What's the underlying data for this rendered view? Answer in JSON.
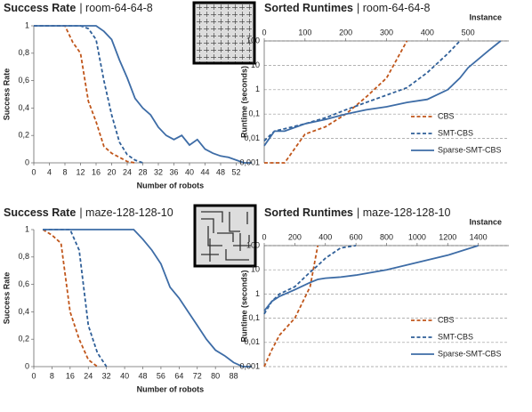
{
  "chart_data": [
    {
      "type": "line",
      "title": "Success Rate",
      "subtitle": "| room-64-64-8",
      "ylabel": "Success Rate",
      "xlabel": "Number of robots",
      "x": [
        0,
        2,
        4,
        6,
        8,
        10,
        12,
        14,
        16,
        18,
        20,
        22,
        24,
        26,
        28,
        30,
        32,
        34,
        36,
        38,
        40,
        42,
        44,
        46,
        48,
        50,
        52,
        54,
        56
      ],
      "xlim": [
        0,
        56
      ],
      "xticks": [
        0,
        4,
        8,
        12,
        16,
        20,
        24,
        28,
        32,
        36,
        40,
        44,
        48,
        52
      ],
      "ylim": [
        0,
        1
      ],
      "yticks": [
        0,
        {
          "value": 0.2,
          "label": "0,2"
        },
        {
          "value": 0.4,
          "label": "0,4"
        },
        {
          "value": 0.6,
          "label": "0,6"
        },
        {
          "value": 0.8,
          "label": "0,8"
        },
        1
      ],
      "grid": false,
      "series": [
        {
          "color": "#c0561b",
          "dashed": true,
          "values": [
            1,
            1,
            1,
            1,
            1,
            0.88,
            0.8,
            0.45,
            0.3,
            0.12,
            0.07,
            0.04,
            0.01,
            0,
            null,
            null,
            null,
            null,
            null,
            null,
            null,
            null,
            null,
            null,
            null,
            null,
            null,
            null,
            null
          ]
        },
        {
          "color": "#2f5f98",
          "dashed": true,
          "values": [
            1,
            1,
            1,
            1,
            1,
            1,
            1,
            0.98,
            0.9,
            0.6,
            0.35,
            0.15,
            0.06,
            0.02,
            0,
            null,
            null,
            null,
            null,
            null,
            null,
            null,
            null,
            null,
            null,
            null,
            null,
            null,
            null
          ]
        },
        {
          "color": "#3d6ca6",
          "dashed": false,
          "values": [
            1,
            1,
            1,
            1,
            1,
            1,
            1,
            1,
            1,
            0.96,
            0.9,
            0.75,
            0.62,
            0.47,
            0.4,
            0.35,
            0.26,
            0.2,
            0.17,
            0.2,
            0.13,
            0.17,
            0.1,
            0.07,
            0.05,
            0.04,
            0.02,
            0,
            0
          ]
        }
      ]
    },
    {
      "type": "line",
      "title": "Sorted Runtimes",
      "subtitle": "| room-64-64-8",
      "ylabel": "Runtime (seconds)",
      "xlabel": "Instance",
      "x_axis_side": "top",
      "x": [
        0,
        25,
        50,
        100,
        150,
        200,
        250,
        300,
        350,
        400,
        450,
        480,
        500,
        550,
        580
      ],
      "xlim": [
        0,
        600
      ],
      "xticks": [
        0,
        100,
        200,
        300,
        400,
        500
      ],
      "yscale": "log",
      "ylim": [
        0.001,
        100
      ],
      "yticks": [
        {
          "value": 0.001,
          "label": "0,001"
        },
        {
          "value": 0.01,
          "label": "0,01"
        },
        {
          "value": 0.1,
          "label": "0,1"
        },
        1,
        10,
        100
      ],
      "grid": true,
      "legend": "lower right",
      "series": [
        {
          "name": "CBS",
          "color": "#c0561b",
          "dashed": true,
          "values": [
            0.001,
            0.001,
            0.001,
            0.015,
            0.03,
            0.1,
            0.5,
            3,
            100,
            null,
            null,
            null,
            null,
            null,
            null
          ]
        },
        {
          "name": "SMT-CBS",
          "color": "#2f5f98",
          "dashed": true,
          "values": [
            0.008,
            0.02,
            0.025,
            0.04,
            0.07,
            0.15,
            0.3,
            0.6,
            1.2,
            5,
            30,
            100,
            null,
            null,
            null
          ]
        },
        {
          "name": "Sparse-SMT-CBS",
          "color": "#3d6ca6",
          "dashed": false,
          "values": [
            0.005,
            0.02,
            0.02,
            0.04,
            0.06,
            0.1,
            0.15,
            0.2,
            0.3,
            0.4,
            1,
            3,
            8,
            40,
            100
          ]
        }
      ]
    },
    {
      "type": "line",
      "title": "Success Rate",
      "subtitle": "| maze-128-128-10",
      "ylabel": "Success Rate",
      "xlabel": "Number of robots",
      "x": [
        0,
        4,
        8,
        12,
        16,
        20,
        24,
        28,
        32,
        36,
        40,
        44,
        48,
        52,
        56,
        60,
        64,
        68,
        72,
        76,
        80,
        84,
        88,
        92,
        96
      ],
      "xlim": [
        0,
        96
      ],
      "xticks": [
        0,
        8,
        16,
        24,
        32,
        40,
        48,
        56,
        64,
        72,
        80,
        88
      ],
      "ylim": [
        0,
        1
      ],
      "yticks": [
        0,
        {
          "value": 0.2,
          "label": "0,2"
        },
        {
          "value": 0.4,
          "label": "0,4"
        },
        {
          "value": 0.6,
          "label": "0,6"
        },
        {
          "value": 0.8,
          "label": "0,8"
        },
        1
      ],
      "grid": false,
      "series": [
        {
          "color": "#c0561b",
          "dashed": true,
          "values": [
            null,
            1,
            0.96,
            0.9,
            0.4,
            0.2,
            0.05,
            0,
            null,
            null,
            null,
            null,
            null,
            null,
            null,
            null,
            null,
            null,
            null,
            null,
            null,
            null,
            null,
            null,
            null
          ]
        },
        {
          "color": "#2f5f98",
          "dashed": true,
          "values": [
            null,
            1,
            1,
            1,
            1,
            0.85,
            0.3,
            0.1,
            0,
            null,
            null,
            null,
            null,
            null,
            null,
            null,
            null,
            null,
            null,
            null,
            null,
            null,
            null,
            null,
            null
          ]
        },
        {
          "color": "#3d6ca6",
          "dashed": false,
          "values": [
            null,
            1,
            1,
            1,
            1,
            1,
            1,
            1,
            1,
            1,
            1,
            1,
            0.93,
            0.85,
            0.75,
            0.58,
            0.5,
            0.4,
            0.3,
            0.2,
            0.12,
            0.08,
            0.03,
            0,
            0
          ]
        }
      ]
    },
    {
      "type": "line",
      "title": "Sorted Runtimes",
      "subtitle": "| maze-128-128-10",
      "ylabel": "Runtime (seconds)",
      "xlabel": "Instance",
      "x_axis_side": "top",
      "x": [
        0,
        50,
        100,
        200,
        300,
        350,
        400,
        500,
        600,
        800,
        1000,
        1200,
        1400
      ],
      "xlim": [
        0,
        1600
      ],
      "xticks": [
        0,
        200,
        400,
        600,
        800,
        1000,
        1200,
        1400
      ],
      "yscale": "log",
      "ylim": [
        0.001,
        100
      ],
      "yticks": [
        {
          "value": 0.001,
          "label": "0,001"
        },
        {
          "value": 0.01,
          "label": "0,01"
        },
        {
          "value": 0.1,
          "label": "0,1"
        },
        1,
        10,
        100
      ],
      "grid": true,
      "legend": "lower right",
      "series": [
        {
          "name": "CBS",
          "color": "#c0561b",
          "dashed": true,
          "values": [
            0.001,
            0.005,
            0.02,
            0.1,
            2,
            100,
            null,
            null,
            null,
            null,
            null,
            null,
            null
          ]
        },
        {
          "name": "SMT-CBS",
          "color": "#2f5f98",
          "dashed": true,
          "values": [
            0.15,
            0.5,
            1,
            2,
            8,
            15,
            30,
            80,
            100,
            null,
            null,
            null,
            null
          ]
        },
        {
          "name": "Sparse-SMT-CBS",
          "color": "#3d6ca6",
          "dashed": false,
          "values": [
            0.2,
            0.5,
            0.8,
            1.5,
            3,
            4,
            4.5,
            5,
            6,
            10,
            20,
            40,
            100
          ]
        }
      ]
    }
  ]
}
